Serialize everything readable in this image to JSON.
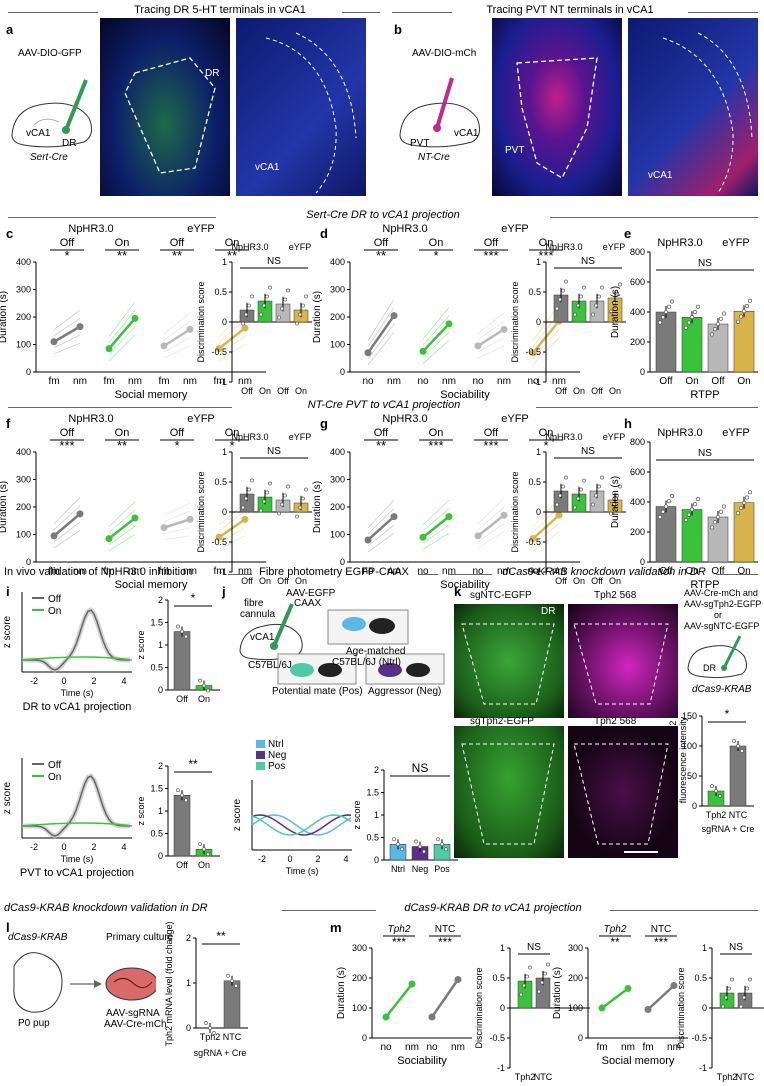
{
  "sections": {
    "a_title": "Tracing DR 5-HT terminals in vCA1",
    "b_title": "Tracing PVT NT terminals in vCA1",
    "sert_title": "Sert-Cre DR to vCA1 projection",
    "nt_title": "NT-Cre PVT to vCA1 projection",
    "i_title": "In vivo validation of NpHR3.0 inhibition",
    "j_title": "Fibre photometry EGFP-CAAX",
    "k_title": "dCas9-KRAB knockdown validation in DR",
    "l_title": "dCas9-KRAB knockdown validation in DR",
    "m_title": "dCas9-KRAB DR to vCA1 projection"
  },
  "panel_a": {
    "virus": "AAV-DIO-GFP",
    "region1": "vCA1",
    "region2": "DR",
    "mouse": "Sert-Cre",
    "img_label1": "DR",
    "img_label2": "vCA1"
  },
  "panel_b": {
    "virus": "AAV-DIO-mCh",
    "region1": "PVT",
    "region2": "vCA1",
    "mouse": "NT-Cre",
    "img_label1": "PVT",
    "img_label2": "vCA1"
  },
  "groups": {
    "nphr": "NpHR3.0",
    "eyfp": "eYFP",
    "off": "Off",
    "on": "On",
    "ns": "NS"
  },
  "axes": {
    "duration": "Duration (s)",
    "disc": "Discrimination score",
    "social_memory": "Social memory",
    "sociability": "Sociability",
    "rtpp": "RTPP",
    "fm": "fm",
    "nm": "nm",
    "no": "no",
    "zscore": "z score",
    "time": "Time (s)"
  },
  "sig": {
    "c": [
      "*",
      "**",
      "**",
      "**"
    ],
    "d": [
      "**",
      "*",
      "***",
      "***"
    ],
    "f": [
      "***",
      "**",
      "*",
      "*"
    ],
    "g": [
      "**",
      "***",
      "***",
      "*"
    ]
  },
  "colors": {
    "dark_gray": "#7a7a7a",
    "green": "#39c23a",
    "light_gray": "#b8b8b8",
    "gold": "#d9b44a",
    "ntrl": "#5bb8e6",
    "neg": "#5a2f86",
    "pos": "#4fc9a6"
  },
  "panel_i": {
    "top_caption": "DR to vCA1 projection",
    "bottom_caption": "PVT to vCA1 projection",
    "sig_top": "*",
    "sig_bottom": "**"
  },
  "panel_j": {
    "fibre": "fibre",
    "cannula": "cannula",
    "virus1": "AAV-EGFP",
    "virus2": "CAAX",
    "region": "vCA1",
    "mouse": "C57BL/6J",
    "box1": "Age-matched",
    "box1b": "C57BL/6J (Ntrl)",
    "box2": "Potential mate (Pos)",
    "box3": "Aggressor (Neg)",
    "legend": [
      "Ntrl",
      "Neg",
      "Pos"
    ],
    "ns": "NS"
  },
  "panel_k": {
    "img1": "sgNTC-EGFP",
    "img2": "Tph2 568",
    "img3": "sgTph2-EGFP",
    "img4": "Tph2 568",
    "dr": "DR",
    "virus_lines": [
      "AAV-Cre-mCh and",
      "AAV-sgTph2-EGFP",
      "or",
      "AAV-sgNTC-EGFP"
    ],
    "mouse": "dCas9-KRAB",
    "ylabel1": "Percentage of Tph2",
    "ylabel2": "fluorescence intensity",
    "x1": "Tph2",
    "x2": "NTC",
    "xgroup": "sgRNA + Cre",
    "sig": "*"
  },
  "panel_l": {
    "mouse": "dCas9-KRAB",
    "culture": "Primary culture",
    "pup": "P0 pup",
    "virus1": "AAV-sgRNA",
    "virus2": "AAV-Cre-mCh",
    "ylabel": "Tph2 mRNA level (fold change)",
    "x1": "Tph2",
    "x2": "NTC",
    "xgroup": "sgRNA + Cre",
    "sig": "**"
  },
  "panel_m": {
    "tph2": "Tph2",
    "ntc": "NTC",
    "sig1": [
      "***",
      "***"
    ],
    "sig2": [
      "**",
      "***"
    ],
    "ns": "NS"
  },
  "chart_data": [
    {
      "type": "bar",
      "id": "e",
      "categories": [
        "Off",
        "On",
        "Off",
        "On"
      ],
      "values": [
        400,
        365,
        320,
        405
      ],
      "ylim": [
        0,
        800
      ],
      "xlabel": "RTPP",
      "ylabel": "Duration (s)"
    },
    {
      "type": "bar",
      "id": "h",
      "categories": [
        "Off",
        "On",
        "Off",
        "On"
      ],
      "values": [
        370,
        350,
        300,
        395
      ],
      "ylim": [
        0,
        800
      ],
      "xlabel": "RTPP",
      "ylabel": "Duration (s)"
    },
    {
      "type": "bar",
      "id": "c2",
      "categories": [
        "Off",
        "On",
        "Off",
        "On"
      ],
      "values": [
        0.2,
        0.35,
        0.3,
        0.2
      ],
      "ylim": [
        -1,
        1
      ],
      "ylabel": "Discrimination score"
    },
    {
      "type": "bar",
      "id": "d2",
      "categories": [
        "Off",
        "On",
        "Off",
        "On"
      ],
      "values": [
        0.45,
        0.35,
        0.35,
        0.4
      ],
      "ylim": [
        -1,
        1
      ],
      "ylabel": "Discrimination score"
    },
    {
      "type": "bar",
      "id": "f2",
      "categories": [
        "Off",
        "On",
        "Off",
        "On"
      ],
      "values": [
        0.3,
        0.25,
        0.2,
        0.15
      ],
      "ylim": [
        -1,
        1
      ],
      "ylabel": "Discrimination score"
    },
    {
      "type": "bar",
      "id": "g2",
      "categories": [
        "Off",
        "On",
        "Off",
        "On"
      ],
      "values": [
        0.35,
        0.3,
        0.35,
        0.2
      ],
      "ylim": [
        -1,
        1
      ],
      "ylabel": "Discrimination score"
    },
    {
      "type": "bar",
      "id": "i_top",
      "categories": [
        "Off",
        "On"
      ],
      "values": [
        1.3,
        0.1
      ],
      "ylim": [
        0,
        2
      ],
      "ylabel": "z score"
    },
    {
      "type": "bar",
      "id": "i_bot",
      "categories": [
        "Off",
        "On"
      ],
      "values": [
        1.35,
        0.15
      ],
      "ylim": [
        0,
        2
      ],
      "ylabel": "z score"
    },
    {
      "type": "bar",
      "id": "j_bar",
      "categories": [
        "Ntrl",
        "Neg",
        "Pos"
      ],
      "values": [
        0.35,
        0.3,
        0.35
      ],
      "ylim": [
        0,
        2
      ],
      "ylabel": "z score"
    },
    {
      "type": "bar",
      "id": "k_bar",
      "categories": [
        "Tph2",
        "NTC"
      ],
      "values": [
        25,
        100
      ],
      "ylim": [
        0,
        150
      ]
    },
    {
      "type": "bar",
      "id": "l_bar",
      "categories": [
        "Tph2",
        "NTC"
      ],
      "values": [
        0,
        1.05
      ],
      "ylim": [
        0,
        2
      ]
    },
    {
      "type": "bar",
      "id": "m_disc1",
      "categories": [
        "Tph2",
        "NTC"
      ],
      "values": [
        0.45,
        0.5
      ],
      "ylim": [
        -1,
        1
      ]
    },
    {
      "type": "bar",
      "id": "m_disc2",
      "categories": [
        "Tph2",
        "NTC"
      ],
      "values": [
        0.25,
        0.25
      ],
      "ylim": [
        -1,
        1
      ]
    },
    {
      "type": "line",
      "id": "c_dur",
      "pairs": [
        [
          110,
          165
        ],
        [
          85,
          195
        ],
        [
          95,
          155
        ],
        [
          85,
          160
        ]
      ],
      "ylim": [
        0,
        400
      ]
    },
    {
      "type": "line",
      "id": "d_dur",
      "pairs": [
        [
          70,
          205
        ],
        [
          75,
          175
        ],
        [
          95,
          155
        ],
        [
          70,
          185
        ]
      ],
      "ylim": [
        0,
        400
      ]
    },
    {
      "type": "line",
      "id": "f_dur",
      "pairs": [
        [
          95,
          175
        ],
        [
          85,
          160
        ],
        [
          125,
          155
        ],
        [
          90,
          155
        ]
      ],
      "ylim": [
        0,
        400
      ]
    },
    {
      "type": "line",
      "id": "g_dur",
      "pairs": [
        [
          80,
          165
        ],
        [
          90,
          165
        ],
        [
          95,
          170
        ],
        [
          85,
          170
        ]
      ],
      "ylim": [
        0,
        400
      ]
    },
    {
      "type": "line",
      "id": "m_dur1",
      "pairs": [
        [
          70,
          180
        ],
        [
          70,
          195
        ]
      ],
      "ylim": [
        0,
        300
      ]
    },
    {
      "type": "line",
      "id": "m_dur2",
      "pairs": [
        [
          100,
          165
        ],
        [
          95,
          175
        ]
      ],
      "ylim": [
        0,
        300
      ]
    }
  ]
}
